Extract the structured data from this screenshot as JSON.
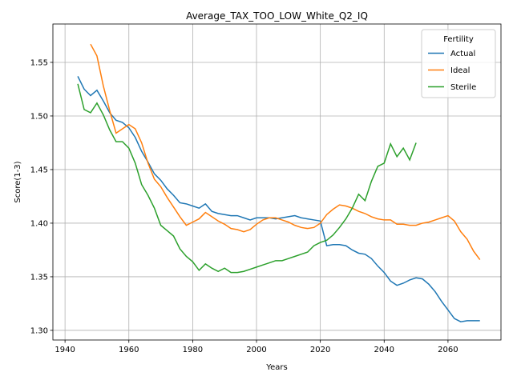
{
  "chart_data": {
    "type": "line",
    "title": "Average_TAX_TOO_LOW_White_Q2_IQ",
    "xlabel": "Years",
    "ylabel": "Score(1-3)",
    "x": [
      1944,
      1946,
      1948,
      1950,
      1952,
      1954,
      1956,
      1958,
      1960,
      1962,
      1964,
      1966,
      1968,
      1970,
      1972,
      1974,
      1976,
      1978,
      1980,
      1982,
      1984,
      1986,
      1988,
      1990,
      1992,
      1994,
      1996,
      1998,
      2000,
      2002,
      2004,
      2006,
      2008,
      2010,
      2012,
      2014,
      2016,
      2018,
      2020,
      2022,
      2024,
      2026,
      2028,
      2030,
      2032,
      2034,
      2036,
      2038,
      2040,
      2042,
      2044,
      2046,
      2048,
      2050,
      2052,
      2054,
      2056,
      2058,
      2060,
      2062,
      2064,
      2066,
      2068,
      2070
    ],
    "series": [
      {
        "name": "Actual",
        "color": "#1f77b4",
        "values": [
          1.537,
          1.525,
          1.519,
          1.524,
          1.514,
          1.503,
          1.496,
          1.494,
          1.489,
          1.48,
          1.467,
          1.457,
          1.446,
          1.44,
          1.432,
          1.426,
          1.419,
          1.418,
          1.416,
          1.414,
          1.418,
          1.411,
          1.409,
          1.408,
          1.407,
          1.407,
          1.405,
          1.403,
          1.405,
          1.405,
          1.405,
          1.404,
          1.405,
          1.406,
          1.407,
          1.405,
          1.404,
          1.403,
          1.402,
          1.379,
          1.38,
          1.38,
          1.379,
          1.375,
          1.372,
          1.371,
          1.367,
          1.36,
          1.354,
          1.346,
          1.342,
          1.344,
          1.347,
          1.349,
          1.348,
          1.343,
          1.336,
          1.327,
          1.319,
          1.311,
          1.308,
          1.309,
          1.309,
          1.309
        ]
      },
      {
        "name": "Ideal",
        "color": "#ff7f0e",
        "values": [
          null,
          null,
          1.567,
          1.556,
          1.528,
          1.505,
          1.484,
          1.488,
          1.492,
          1.488,
          1.475,
          1.456,
          1.441,
          1.434,
          1.424,
          1.415,
          1.406,
          1.398,
          1.401,
          1.404,
          1.41,
          1.406,
          1.402,
          1.399,
          1.395,
          1.394,
          1.392,
          1.394,
          1.399,
          1.403,
          1.405,
          1.405,
          1.403,
          1.401,
          1.398,
          1.396,
          1.395,
          1.396,
          1.4,
          1.408,
          1.413,
          1.417,
          1.416,
          1.414,
          1.411,
          1.409,
          1.406,
          1.404,
          1.403,
          1.403,
          1.399,
          1.399,
          1.398,
          1.398,
          1.4,
          1.401,
          1.403,
          1.405,
          1.407,
          1.402,
          1.392,
          1.385,
          1.374,
          1.366
        ]
      },
      {
        "name": "Sterile",
        "color": "#2ca02c",
        "values": [
          1.53,
          1.506,
          1.503,
          1.512,
          1.501,
          1.487,
          1.476,
          1.476,
          1.47,
          1.456,
          1.436,
          1.426,
          1.414,
          1.398,
          1.393,
          1.388,
          1.376,
          1.369,
          1.364,
          1.356,
          1.362,
          1.358,
          1.355,
          1.358,
          1.354,
          1.354,
          1.355,
          1.357,
          1.359,
          1.361,
          1.363,
          1.365,
          1.365,
          1.367,
          1.369,
          1.371,
          1.373,
          1.379,
          1.382,
          1.384,
          1.389,
          1.396,
          1.404,
          1.414,
          1.427,
          1.421,
          1.439,
          1.453,
          1.456,
          1.474,
          1.462,
          1.47,
          1.459,
          1.475,
          null,
          null,
          null,
          null,
          null,
          null,
          null,
          null,
          null,
          null
        ]
      }
    ],
    "xlim": [
      1936.2,
      2076.6
    ],
    "xticks": [
      1940,
      1960,
      1980,
      2000,
      2020,
      2040,
      2060
    ],
    "ylim": [
      1.291,
      1.5858
    ],
    "yticks": [
      {
        "value": 1.3,
        "label": "1.30"
      },
      1.35,
      {
        "value": 1.4,
        "label": "1.40"
      },
      1.45,
      {
        "value": 1.5,
        "label": "1.50"
      },
      1.55
    ],
    "grid": true,
    "legend_title": "Fertility",
    "legend_loc": "upper right"
  }
}
